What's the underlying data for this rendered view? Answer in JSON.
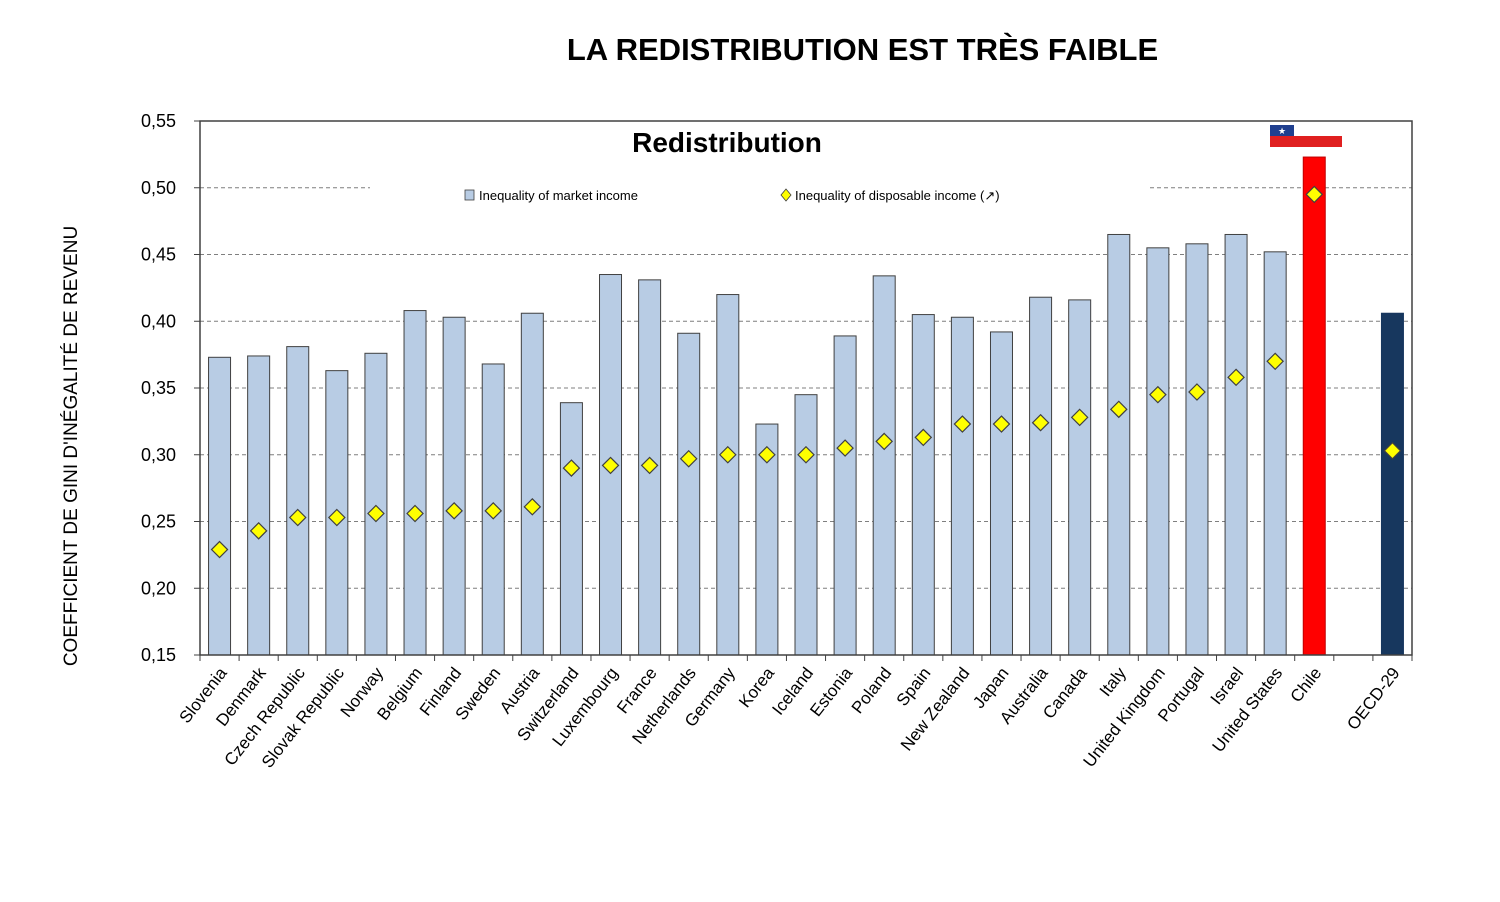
{
  "page": {
    "title": "LA REDISTRIBUTION EST TRÈS FAIBLE"
  },
  "chart_data": {
    "type": "bar",
    "title": "Redistribution",
    "xlabel": "",
    "ylabel": "COEFFICIENT DE GINI D'INÉGALITÉ DE REVENU",
    "ylim": [
      0.15,
      0.55
    ],
    "yticks": [
      "0,15",
      "0,20",
      "0,25",
      "0,30",
      "0,35",
      "0,40",
      "0,45",
      "0,50",
      "0,55"
    ],
    "grid": "horizontal dashed",
    "legend_position": "top",
    "categories": [
      "Slovenia",
      "Denmark",
      "Czech Republic",
      "Slovak Republic",
      "Norway",
      "Belgium",
      "Finland",
      "Sweden",
      "Austria",
      "Switzerland",
      "Luxembourg",
      "France",
      "Netherlands",
      "Germany",
      "Korea",
      "Iceland",
      "Estonia",
      "Poland",
      "Spain",
      "New Zealand",
      "Japan",
      "Australia",
      "Canada",
      "Italy",
      "United Kingdom",
      "Portugal",
      "Israel",
      "United States",
      "Chile",
      "OECD-29"
    ],
    "series": [
      {
        "name": "Inequality of market income",
        "kind": "bar",
        "values": [
          0.373,
          0.374,
          0.381,
          0.363,
          0.376,
          0.408,
          0.403,
          0.368,
          0.406,
          0.339,
          0.435,
          0.431,
          0.391,
          0.42,
          0.323,
          0.345,
          0.389,
          0.434,
          0.405,
          0.403,
          0.392,
          0.418,
          0.416,
          0.465,
          0.455,
          0.458,
          0.465,
          0.452,
          0.523,
          0.406
        ]
      },
      {
        "name": "Inequality of disposable income (↗)",
        "kind": "marker",
        "values": [
          0.229,
          0.243,
          0.253,
          0.253,
          0.256,
          0.256,
          0.258,
          0.258,
          0.261,
          0.29,
          0.292,
          0.292,
          0.297,
          0.3,
          0.3,
          0.3,
          0.305,
          0.31,
          0.313,
          0.323,
          0.323,
          0.324,
          0.328,
          0.334,
          0.345,
          0.347,
          0.358,
          0.37,
          0.495,
          0.303
        ]
      }
    ],
    "highlight": {
      "Chile": "red",
      "OECD-29": "dark blue"
    },
    "colors": {
      "market_bar": "#b8cce4",
      "bar_stroke": "#404040",
      "chile_bar": "#ff0000",
      "oecd_bar": "#17375e",
      "marker_fill": "#ffff00",
      "marker_stroke": "#404040",
      "grid": "#7f7f7f",
      "flag_red": "#e02020",
      "flag_blue": "#1f3f8f",
      "flag_white": "#ffffff"
    },
    "flag": "chile-flag-icon"
  }
}
